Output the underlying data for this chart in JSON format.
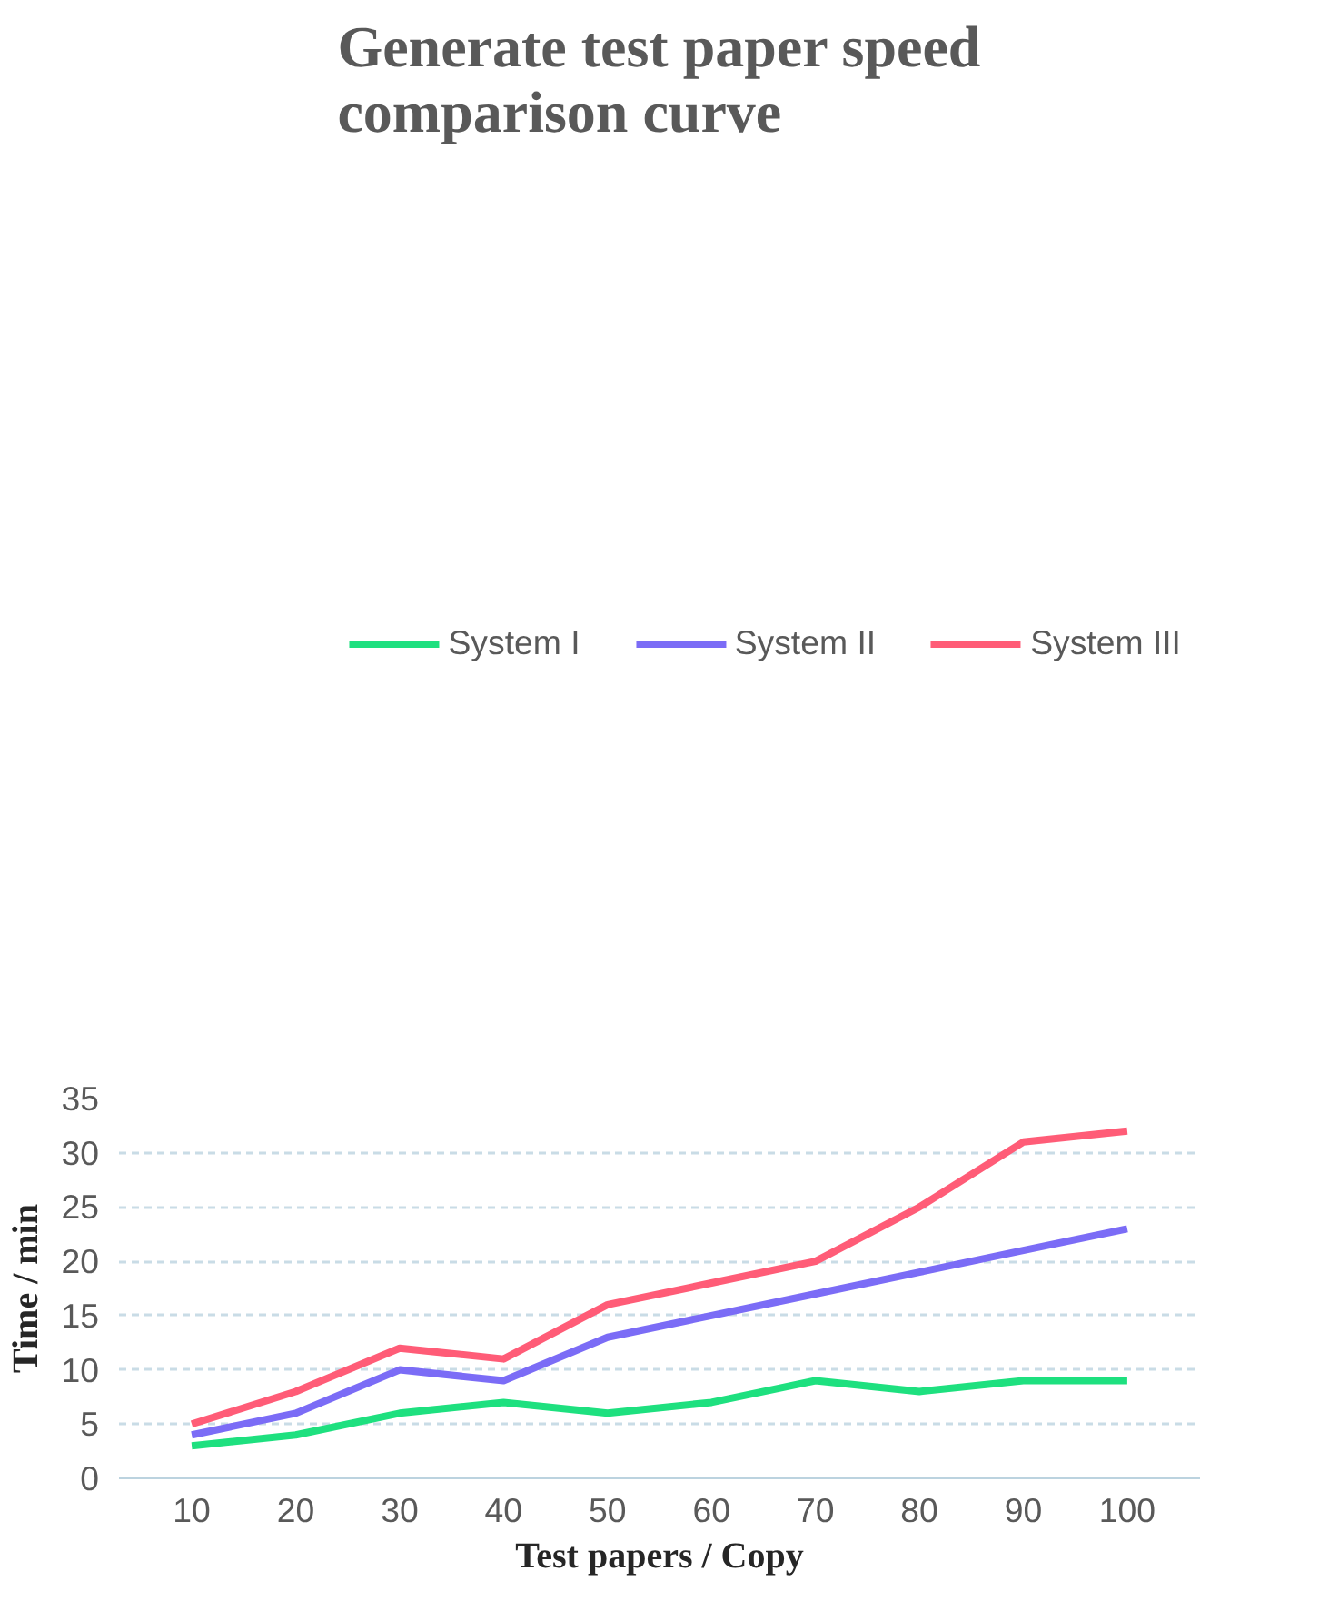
{
  "chart_data": {
    "type": "line",
    "title": "Generate test paper speed comparison curve",
    "xlabel": "Test papers / Copy",
    "ylabel": "Time / min",
    "categories": [
      "10",
      "20",
      "30",
      "40",
      "50",
      "60",
      "70",
      "80",
      "90",
      "100"
    ],
    "series": [
      {
        "name": "System I",
        "color": "#1ee07f",
        "values": [
          3,
          4,
          6,
          7,
          6,
          7,
          9,
          8,
          9,
          9
        ]
      },
      {
        "name": "System II",
        "color": "#7b6cf6",
        "values": [
          4,
          6,
          10,
          9,
          13,
          15,
          17,
          19,
          21,
          23
        ]
      },
      {
        "name": "System III",
        "color": "#ff5c77",
        "values": [
          5,
          8,
          12,
          11,
          16,
          18,
          20,
          25,
          31,
          32
        ]
      }
    ],
    "ylim": [
      0,
      35
    ],
    "yticks": [
      0,
      5,
      10,
      15,
      20,
      25,
      30,
      35
    ],
    "grid": "y",
    "legend": "top",
    "line_style": "solid",
    "marker": "none"
  }
}
